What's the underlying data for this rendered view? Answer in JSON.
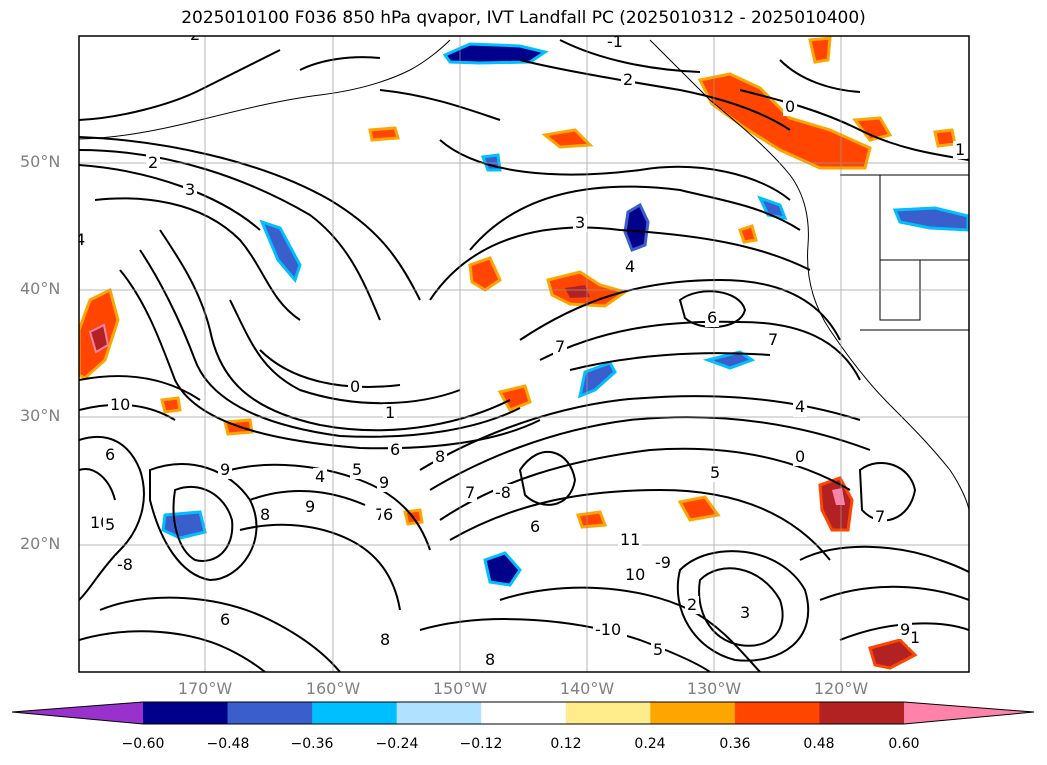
{
  "title": "2025010100 F036 850 hPa qvapor, IVT Landfall PC (2025010312 - 2025010400)",
  "map": {
    "lat_range": [
      10,
      60
    ],
    "lon_range": [
      -180,
      -110
    ],
    "lat_ticks": [
      "50°N",
      "40°N",
      "30°N",
      "20°N"
    ],
    "lon_ticks": [
      "170°W",
      "160°W",
      "150°W",
      "140°W",
      "130°W",
      "120°W"
    ],
    "grid": true,
    "contour_color": "#000000",
    "contour_labels": [
      "2",
      "3",
      "4",
      "2",
      "0",
      "1",
      "2",
      "-1",
      "0",
      "3",
      "4",
      "6",
      "7",
      "6",
      "1",
      "0",
      "1",
      "7",
      "6",
      "5",
      "4",
      "8",
      "9",
      "10",
      "8",
      "7",
      "10",
      "9",
      "8",
      "-10",
      "-9",
      "-8",
      "10",
      "11",
      "2",
      "3",
      "1",
      "7",
      "9",
      "5",
      "6",
      "-8",
      "9",
      "7",
      "6",
      "4",
      "5",
      "6",
      "8",
      "5"
    ]
  },
  "colorbar": {
    "tick_labels": [
      "−0.60",
      "−0.48",
      "−0.36",
      "−0.24",
      "−0.12",
      "0.12",
      "0.24",
      "0.36",
      "0.48",
      "0.60"
    ],
    "colors": [
      "#9932cc",
      "#00008b",
      "#3a5fcd",
      "#00bfff",
      "#b0e2ff",
      "#ffffff",
      "#ffec8b",
      "#ffa500",
      "#ff4500",
      "#b22222",
      "#ff82ab",
      "#ffb6c1"
    ],
    "extend": "both"
  }
}
